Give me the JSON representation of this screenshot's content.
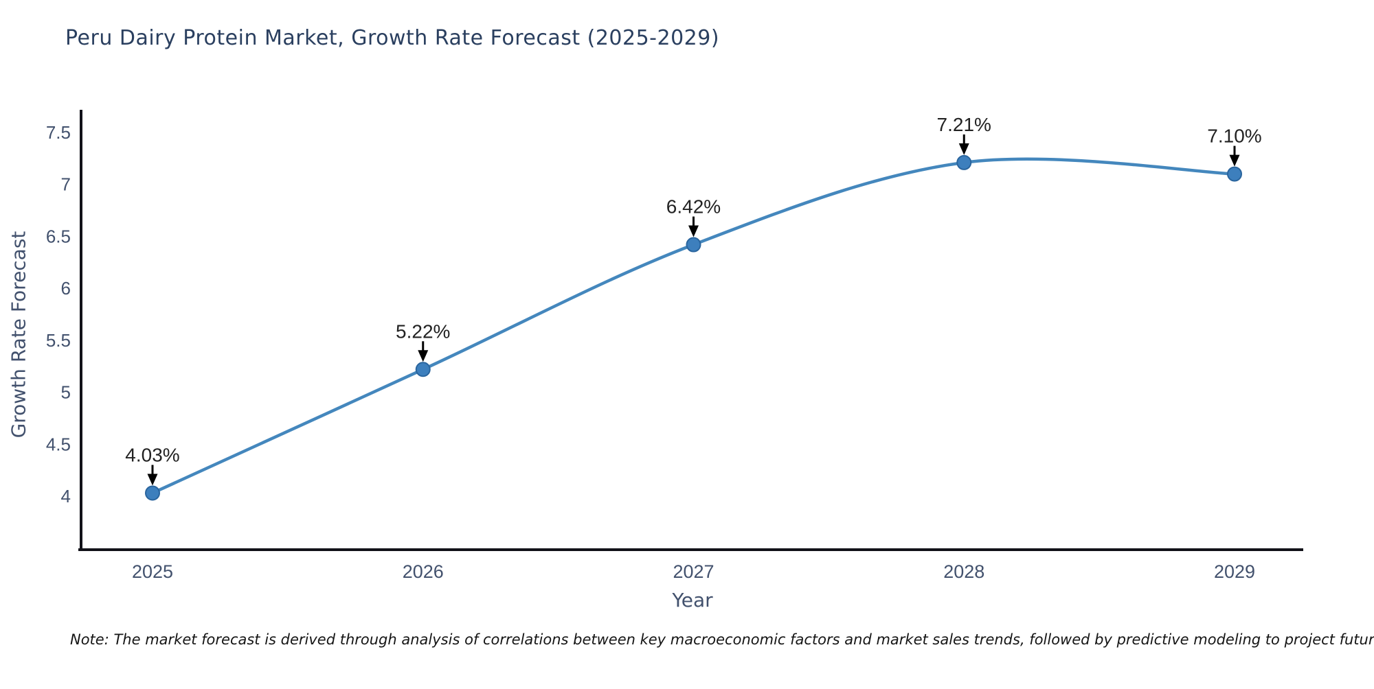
{
  "chart_data": {
    "type": "line",
    "title": "Peru Dairy Protein Market, Growth Rate Forecast (2025-2029)",
    "xlabel": "Year",
    "ylabel": "Growth Rate Forecast",
    "categories": [
      "2025",
      "2026",
      "2027",
      "2028",
      "2029"
    ],
    "values": [
      4.03,
      5.22,
      6.42,
      7.21,
      7.1
    ],
    "point_labels": [
      "4.03%",
      "5.22%",
      "6.42%",
      "7.21%",
      "7.10%"
    ],
    "yticks": [
      4,
      4.5,
      5,
      5.5,
      6,
      6.5,
      7,
      7.5
    ],
    "ylim": [
      3.5,
      7.72
    ],
    "line_shape": "spline",
    "grid": false,
    "legend": "none",
    "colors": {
      "line": "#4487bd",
      "marker_fill": "#3d7fbd",
      "marker_edge": "#2a659e",
      "axis_spine": "#121219",
      "tick_text": "#42516d",
      "annotation_text": "#222222",
      "annotation_arrow": "#000000",
      "title_text": "#2a3f5f"
    },
    "note": "Note: The market forecast is derived through analysis of correlations between key macroeconomic factors and market sales trends, followed by predictive modeling to project future sales"
  }
}
